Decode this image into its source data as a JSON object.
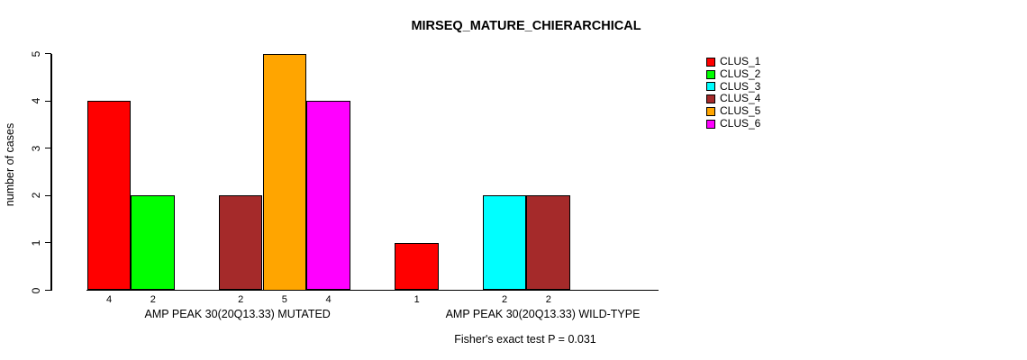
{
  "chart_data": {
    "type": "bar",
    "title": "MIRSEQ_MATURE_CHIERARCHICAL",
    "xlabel": "",
    "ylabel": "number of cases",
    "ylim": [
      0,
      5
    ],
    "yticks": [
      0,
      1,
      2,
      3,
      4,
      5
    ],
    "grid": false,
    "legend_position": "right",
    "bar_value_labels": true,
    "categories": [
      "AMP PEAK 30(20Q13.33) MUTATED",
      "AMP PEAK 30(20Q13.33) WILD-TYPE"
    ],
    "series": [
      {
        "name": "CLUS_1",
        "color": "#FF0000",
        "values": [
          4,
          1
        ]
      },
      {
        "name": "CLUS_2",
        "color": "#00FF00",
        "values": [
          2,
          0
        ]
      },
      {
        "name": "CLUS_3",
        "color": "#00FFFF",
        "values": [
          0,
          2
        ]
      },
      {
        "name": "CLUS_4",
        "color": "#A52A2A",
        "values": [
          2,
          2
        ]
      },
      {
        "name": "CLUS_5",
        "color": "#FFA500",
        "values": [
          5,
          0
        ]
      },
      {
        "name": "CLUS_6",
        "color": "#FF00FF",
        "values": [
          4,
          0
        ]
      }
    ],
    "annotation": "Fisher's exact test P = 0.031"
  }
}
